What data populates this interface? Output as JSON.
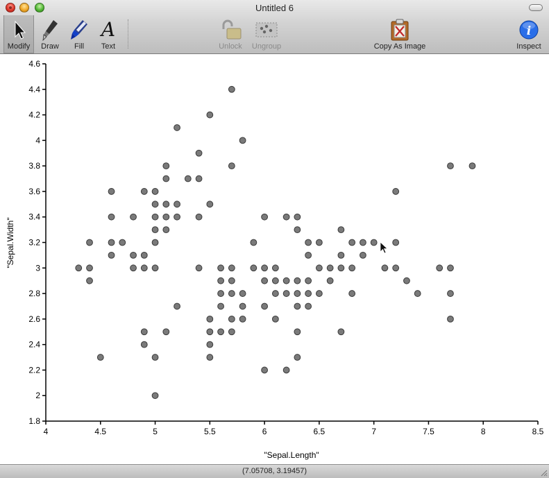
{
  "window": {
    "title": "Untitled 6"
  },
  "toolbar": {
    "tools": [
      {
        "id": "modify",
        "label": "Modify",
        "icon": "arrow-cursor-icon",
        "selected": true
      },
      {
        "id": "draw",
        "label": "Draw",
        "icon": "pen-icon"
      },
      {
        "id": "fill",
        "label": "Fill",
        "icon": "marker-icon"
      },
      {
        "id": "text",
        "label": "Text",
        "icon": "text-a-icon"
      }
    ],
    "actions": [
      {
        "id": "unlock",
        "label": "Unlock",
        "icon": "padlock-icon",
        "enabled": false
      },
      {
        "id": "ungroup",
        "label": "Ungroup",
        "icon": "ungroup-icon",
        "enabled": false
      },
      {
        "id": "copy_as_image",
        "label": "Copy As Image",
        "icon": "clipboard-image-icon",
        "enabled": true
      },
      {
        "id": "inspect",
        "label": "Inspect",
        "icon": "info-icon",
        "enabled": true
      }
    ]
  },
  "status": {
    "coordinates": "(7.05708, 3.19457)"
  },
  "colors": {
    "point_fill": "#7a7a7a",
    "point_stroke": "#3a3a3a",
    "axis": "#000000",
    "inspect_blue": "#1a5fd6"
  },
  "chart_data": {
    "type": "scatter",
    "xlabel": "\"Sepal.Length\"",
    "ylabel": "\"Sepal.Width\"",
    "xlim": [
      4,
      8.5
    ],
    "ylim": [
      1.8,
      4.6
    ],
    "x_ticks": [
      "4",
      "4.5",
      "5",
      "5.5",
      "6",
      "6.5",
      "7",
      "7.5",
      "8",
      "8.5"
    ],
    "y_ticks": [
      "1.8",
      "2",
      "2.2",
      "2.4",
      "2.6",
      "2.8",
      "3",
      "3.2",
      "3.4",
      "3.6",
      "3.8",
      "4",
      "4.2",
      "4.4",
      "4.6"
    ],
    "grid": false,
    "points": [
      [
        4.3,
        3.0
      ],
      [
        4.4,
        2.9
      ],
      [
        4.4,
        3.0
      ],
      [
        4.4,
        3.2
      ],
      [
        4.5,
        2.3
      ],
      [
        4.6,
        3.1
      ],
      [
        4.6,
        3.2
      ],
      [
        4.6,
        3.4
      ],
      [
        4.6,
        3.6
      ],
      [
        4.7,
        3.2
      ],
      [
        4.8,
        3.0
      ],
      [
        4.8,
        3.1
      ],
      [
        4.8,
        3.4
      ],
      [
        4.9,
        2.4
      ],
      [
        4.9,
        2.5
      ],
      [
        4.9,
        3.0
      ],
      [
        4.9,
        3.1
      ],
      [
        4.9,
        3.6
      ],
      [
        5.0,
        2.0
      ],
      [
        5.0,
        2.3
      ],
      [
        5.0,
        3.0
      ],
      [
        5.0,
        3.2
      ],
      [
        5.0,
        3.3
      ],
      [
        5.0,
        3.4
      ],
      [
        5.0,
        3.5
      ],
      [
        5.0,
        3.6
      ],
      [
        5.1,
        2.5
      ],
      [
        5.1,
        3.3
      ],
      [
        5.1,
        3.4
      ],
      [
        5.1,
        3.5
      ],
      [
        5.1,
        3.7
      ],
      [
        5.1,
        3.8
      ],
      [
        5.2,
        2.7
      ],
      [
        5.2,
        3.4
      ],
      [
        5.2,
        3.5
      ],
      [
        5.2,
        4.1
      ],
      [
        5.3,
        3.7
      ],
      [
        5.4,
        3.0
      ],
      [
        5.4,
        3.4
      ],
      [
        5.4,
        3.7
      ],
      [
        5.4,
        3.9
      ],
      [
        5.5,
        2.3
      ],
      [
        5.5,
        2.4
      ],
      [
        5.5,
        2.5
      ],
      [
        5.5,
        2.6
      ],
      [
        5.5,
        3.5
      ],
      [
        5.5,
        4.2
      ],
      [
        5.6,
        2.5
      ],
      [
        5.6,
        2.7
      ],
      [
        5.6,
        2.8
      ],
      [
        5.6,
        2.9
      ],
      [
        5.6,
        3.0
      ],
      [
        5.7,
        2.5
      ],
      [
        5.7,
        2.6
      ],
      [
        5.7,
        2.8
      ],
      [
        5.7,
        2.9
      ],
      [
        5.7,
        3.0
      ],
      [
        5.7,
        3.8
      ],
      [
        5.7,
        4.4
      ],
      [
        5.8,
        2.6
      ],
      [
        5.8,
        2.7
      ],
      [
        5.8,
        2.8
      ],
      [
        5.8,
        4.0
      ],
      [
        5.9,
        3.0
      ],
      [
        5.9,
        3.2
      ],
      [
        6.0,
        2.2
      ],
      [
        6.0,
        2.7
      ],
      [
        6.0,
        2.9
      ],
      [
        6.0,
        3.0
      ],
      [
        6.0,
        3.4
      ],
      [
        6.1,
        2.6
      ],
      [
        6.1,
        2.8
      ],
      [
        6.1,
        2.9
      ],
      [
        6.1,
        3.0
      ],
      [
        6.2,
        2.2
      ],
      [
        6.2,
        2.8
      ],
      [
        6.2,
        2.9
      ],
      [
        6.2,
        3.4
      ],
      [
        6.3,
        2.3
      ],
      [
        6.3,
        2.5
      ],
      [
        6.3,
        2.7
      ],
      [
        6.3,
        2.8
      ],
      [
        6.3,
        2.9
      ],
      [
        6.3,
        3.3
      ],
      [
        6.3,
        3.4
      ],
      [
        6.4,
        2.7
      ],
      [
        6.4,
        2.8
      ],
      [
        6.4,
        2.9
      ],
      [
        6.4,
        3.1
      ],
      [
        6.4,
        3.2
      ],
      [
        6.5,
        2.8
      ],
      [
        6.5,
        3.0
      ],
      [
        6.5,
        3.2
      ],
      [
        6.6,
        2.9
      ],
      [
        6.6,
        3.0
      ],
      [
        6.7,
        2.5
      ],
      [
        6.7,
        3.0
      ],
      [
        6.7,
        3.1
      ],
      [
        6.7,
        3.3
      ],
      [
        6.8,
        2.8
      ],
      [
        6.8,
        3.0
      ],
      [
        6.8,
        3.2
      ],
      [
        6.9,
        3.1
      ],
      [
        6.9,
        3.2
      ],
      [
        7.0,
        3.2
      ],
      [
        7.1,
        3.0
      ],
      [
        7.2,
        3.0
      ],
      [
        7.2,
        3.2
      ],
      [
        7.2,
        3.6
      ],
      [
        7.3,
        2.9
      ],
      [
        7.4,
        2.8
      ],
      [
        7.6,
        3.0
      ],
      [
        7.7,
        2.6
      ],
      [
        7.7,
        2.8
      ],
      [
        7.7,
        3.0
      ],
      [
        7.7,
        3.8
      ],
      [
        7.9,
        3.8
      ]
    ]
  }
}
